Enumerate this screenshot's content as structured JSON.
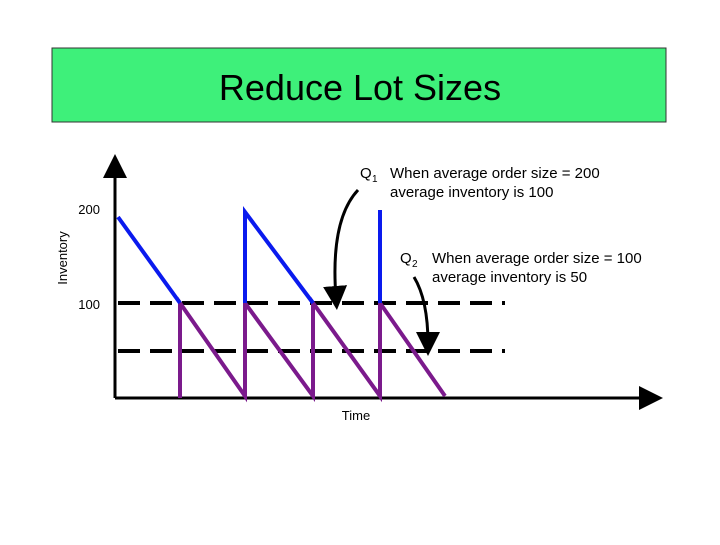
{
  "header": {
    "title": "Reduce Lot Sizes"
  },
  "axes": {
    "y_label": "Inventory",
    "x_label": "Time",
    "y_ticks": [
      "200",
      "100"
    ]
  },
  "annotations": [
    {
      "symbol": "Q",
      "subscript": "1",
      "line1": "When average order size = 200",
      "line2": "average inventory is 100"
    },
    {
      "symbol": "Q",
      "subscript": "2",
      "line1": "When average order size = 100",
      "line2": "average inventory is 50"
    }
  ]
}
